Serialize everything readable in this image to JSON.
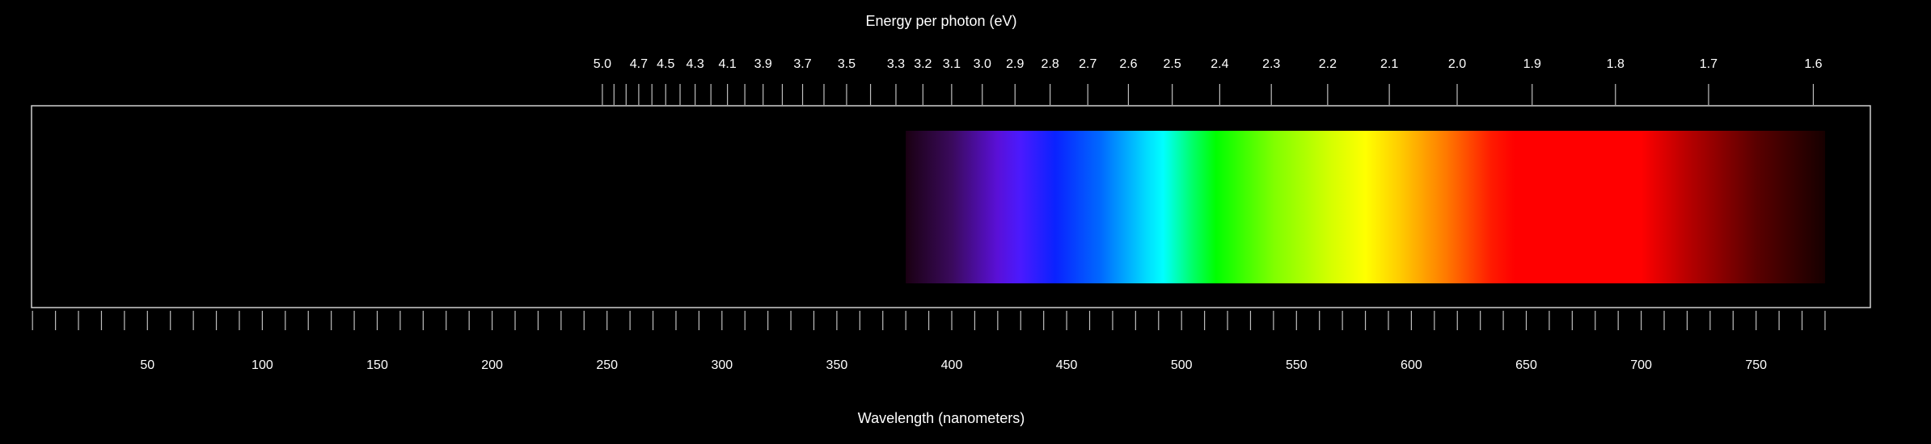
{
  "chart_data": {
    "type": "spectrum",
    "title": "",
    "top_axis_title": "Energy per photon (eV)",
    "bottom_axis_title": "Wavelength (nanometers)",
    "bottom_axis_range": [
      0,
      800
    ],
    "bottom_axis_unit": "nanometers",
    "wavelength_tick_labels": [
      50,
      100,
      150,
      200,
      250,
      300,
      350,
      400,
      450,
      500,
      550,
      600,
      650,
      700,
      750
    ],
    "wavelength_minor_tick_step": 10,
    "energy_tick_labels": [
      "5.0",
      "4.7",
      "4.5",
      "4.3",
      "4.1",
      "3.9",
      "3.7",
      "3.5",
      "3.3",
      "3.2",
      "3.1",
      "3.0",
      "2.9",
      "2.8",
      "2.7",
      "2.6",
      "2.5",
      "2.4",
      "2.3",
      "2.2",
      "2.1",
      "2.0",
      "1.9",
      "1.8",
      "1.7",
      "1.6"
    ],
    "energy_unlabeled_ticks": [
      "4.9",
      "4.8",
      "4.6",
      "4.4",
      "4.2",
      "4.0",
      "3.8",
      "3.6",
      "3.4"
    ],
    "visible_band_nm": [
      380,
      780
    ],
    "color_stops": [
      {
        "nm": 380,
        "color": "#1a0012"
      },
      {
        "nm": 400,
        "color": "#3a0a5c"
      },
      {
        "nm": 420,
        "color": "#5a10d8"
      },
      {
        "nm": 430,
        "color": "#4a1aff"
      },
      {
        "nm": 445,
        "color": "#0a22ff"
      },
      {
        "nm": 465,
        "color": "#006aff"
      },
      {
        "nm": 485,
        "color": "#00ddff"
      },
      {
        "nm": 492,
        "color": "#00ffff"
      },
      {
        "nm": 505,
        "color": "#00ff66"
      },
      {
        "nm": 515,
        "color": "#00ff00"
      },
      {
        "nm": 540,
        "color": "#7fff00"
      },
      {
        "nm": 565,
        "color": "#d5ff00"
      },
      {
        "nm": 580,
        "color": "#ffff00"
      },
      {
        "nm": 595,
        "color": "#ffcc00"
      },
      {
        "nm": 615,
        "color": "#ff7a00"
      },
      {
        "nm": 635,
        "color": "#ff1a00"
      },
      {
        "nm": 645,
        "color": "#ff0000"
      },
      {
        "nm": 700,
        "color": "#ff0000"
      },
      {
        "nm": 720,
        "color": "#b80000"
      },
      {
        "nm": 750,
        "color": "#5a0000"
      },
      {
        "nm": 780,
        "color": "#160000"
      }
    ],
    "colors": {
      "background": "#000000",
      "frame": "#cfcfcf",
      "tick": "#bfbfbf",
      "text": "#ffffff"
    }
  }
}
